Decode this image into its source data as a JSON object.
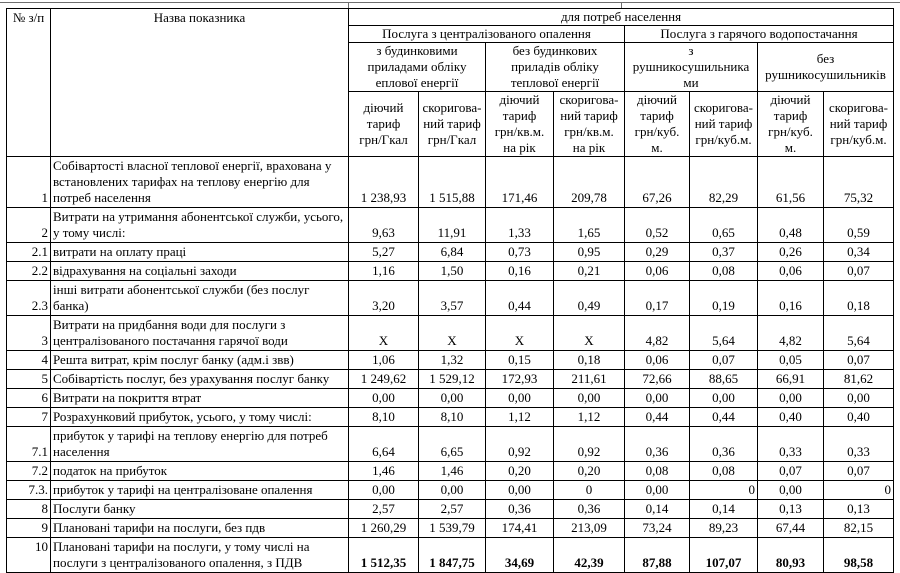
{
  "page": {
    "background": "#ffffff",
    "border_color": "#000000",
    "text_color": "#000000",
    "top_rule_color": "#6e6e6e"
  },
  "table": {
    "header": {
      "num_col": "№ з/п",
      "name_col": "Назва показника",
      "top_group": "для потреб населення",
      "service_groups": [
        {
          "label": "Послуга з централізованого опалення",
          "subgroups": [
            {
              "label": "з будинковими\nприладами обліку\nеплової енергії",
              "columns": [
                "діючий\nтариф\nгрн/Гкал",
                "скоригова-\nний тариф\nгрн/Гкал"
              ]
            },
            {
              "label": "без будинкових\nприладів обліку\nтеплової енергії",
              "columns": [
                "діючий\nтариф\nгрн/кв.м.\nна рік",
                "скоригова-\nний тариф\nгрн/кв.м.\nна рік"
              ]
            }
          ]
        },
        {
          "label": "Послуга з гарячого водопостачання",
          "subgroups": [
            {
              "label": "з\nрушникосушильника\nми",
              "columns": [
                "діючий\nтариф\nгрн/куб.\nм.",
                "скоригова-\nний тариф\nгрн/куб.м."
              ]
            },
            {
              "label": "без\nрушникосушильників",
              "columns": [
                "діючий\nтариф\nгрн/куб.\nм.",
                "скоригова-\nний тариф\nгрн/куб.м."
              ]
            }
          ]
        }
      ]
    },
    "rows": [
      {
        "num": "1",
        "name": "Собівартості власної теплової енергії, врахована у встановлених тарифах на теплову енергію для потреб населення",
        "values": [
          "1 238,93",
          "1 515,88",
          "171,46",
          "209,78",
          "67,26",
          "82,29",
          "61,56",
          "75,32"
        ]
      },
      {
        "num": "2",
        "name": "Витрати на утримання абонентської служби, усього, у тому числі:",
        "values": [
          "9,63",
          "11,91",
          "1,33",
          "1,65",
          "0,52",
          "0,65",
          "0,48",
          "0,59"
        ]
      },
      {
        "num": "2.1",
        "name": "витрати на оплату праці",
        "values": [
          "5,27",
          "6,84",
          "0,73",
          "0,95",
          "0,29",
          "0,37",
          "0,26",
          "0,34"
        ]
      },
      {
        "num": "2.2",
        "name": "відрахування на соціальні заходи",
        "values": [
          "1,16",
          "1,50",
          "0,16",
          "0,21",
          "0,06",
          "0,08",
          "0,06",
          "0,07"
        ]
      },
      {
        "num": "2.3",
        "name": "інші витрати абонентської служби (без послуг банка)",
        "values": [
          "3,20",
          "3,57",
          "0,44",
          "0,49",
          "0,17",
          "0,19",
          "0,16",
          "0,18"
        ]
      },
      {
        "num": "3",
        "name": "Витрати на придбання води для послуги з централізованого постачання гарячої води",
        "values": [
          "X",
          "X",
          "X",
          "X",
          "4,82",
          "5,64",
          "4,82",
          "5,64"
        ]
      },
      {
        "num": "4",
        "name": "Решта витрат, крім послуг банку (адм.і звв)",
        "values": [
          "1,06",
          "1,32",
          "0,15",
          "0,18",
          "0,06",
          "0,07",
          "0,05",
          "0,07"
        ]
      },
      {
        "num": "5",
        "name": "Собівартість послуг, без урахування послуг банку",
        "values": [
          "1 249,62",
          "1 529,12",
          "172,93",
          "211,61",
          "72,66",
          "88,65",
          "66,91",
          "81,62"
        ]
      },
      {
        "num": "6",
        "name": "Витрати на покриття втрат",
        "values": [
          "0,00",
          "0,00",
          "0,00",
          "0,00",
          "0,00",
          "0,00",
          "0,00",
          "0,00"
        ]
      },
      {
        "num": "7",
        "name": "Розрахунковий прибуток, усього, у тому числі:",
        "values": [
          "8,10",
          "8,10",
          "1,12",
          "1,12",
          "0,44",
          "0,44",
          "0,40",
          "0,40"
        ]
      },
      {
        "num": "7.1",
        "name": "прибуток у тарифі на теплову енергію для потреб населення",
        "values": [
          "6,64",
          "6,65",
          "0,92",
          "0,92",
          "0,36",
          "0,36",
          "0,33",
          "0,33"
        ]
      },
      {
        "num": "7.2",
        "name": "податок на прибуток",
        "values": [
          "1,46",
          "1,46",
          "0,20",
          "0,20",
          "0,08",
          "0,08",
          "0,07",
          "0,07"
        ]
      },
      {
        "num": "7.3.",
        "name": "прибуток у тарифі на централізоване опалення",
        "values": [
          "0,00",
          "0,00",
          "0,00",
          "0",
          "0,00",
          "0",
          "0,00",
          "0"
        ],
        "value_aligns": [
          "c",
          "c",
          "c",
          "c",
          "c",
          "r",
          "c",
          "r"
        ]
      },
      {
        "num": "8",
        "name": "Послуги банку",
        "values": [
          "2,57",
          "2,57",
          "0,36",
          "0,36",
          "0,14",
          "0,14",
          "0,13",
          "0,13"
        ]
      },
      {
        "num": "9",
        "name": "Плановані тарифи на послуги, без пдв",
        "values": [
          "1 260,29",
          "1 539,79",
          "174,41",
          "213,09",
          "73,24",
          "89,23",
          "67,44",
          "82,15"
        ]
      },
      {
        "num": "10",
        "name": "Плановані тарифи на послуги, у тому числі на послуги з централізованого опалення, з ПДВ",
        "values": [
          "1 512,35",
          "1 847,75",
          "34,69",
          "42,39",
          "87,88",
          "107,07",
          "80,93",
          "98,58"
        ],
        "bold_values": true,
        "num_valign": "top"
      }
    ]
  }
}
